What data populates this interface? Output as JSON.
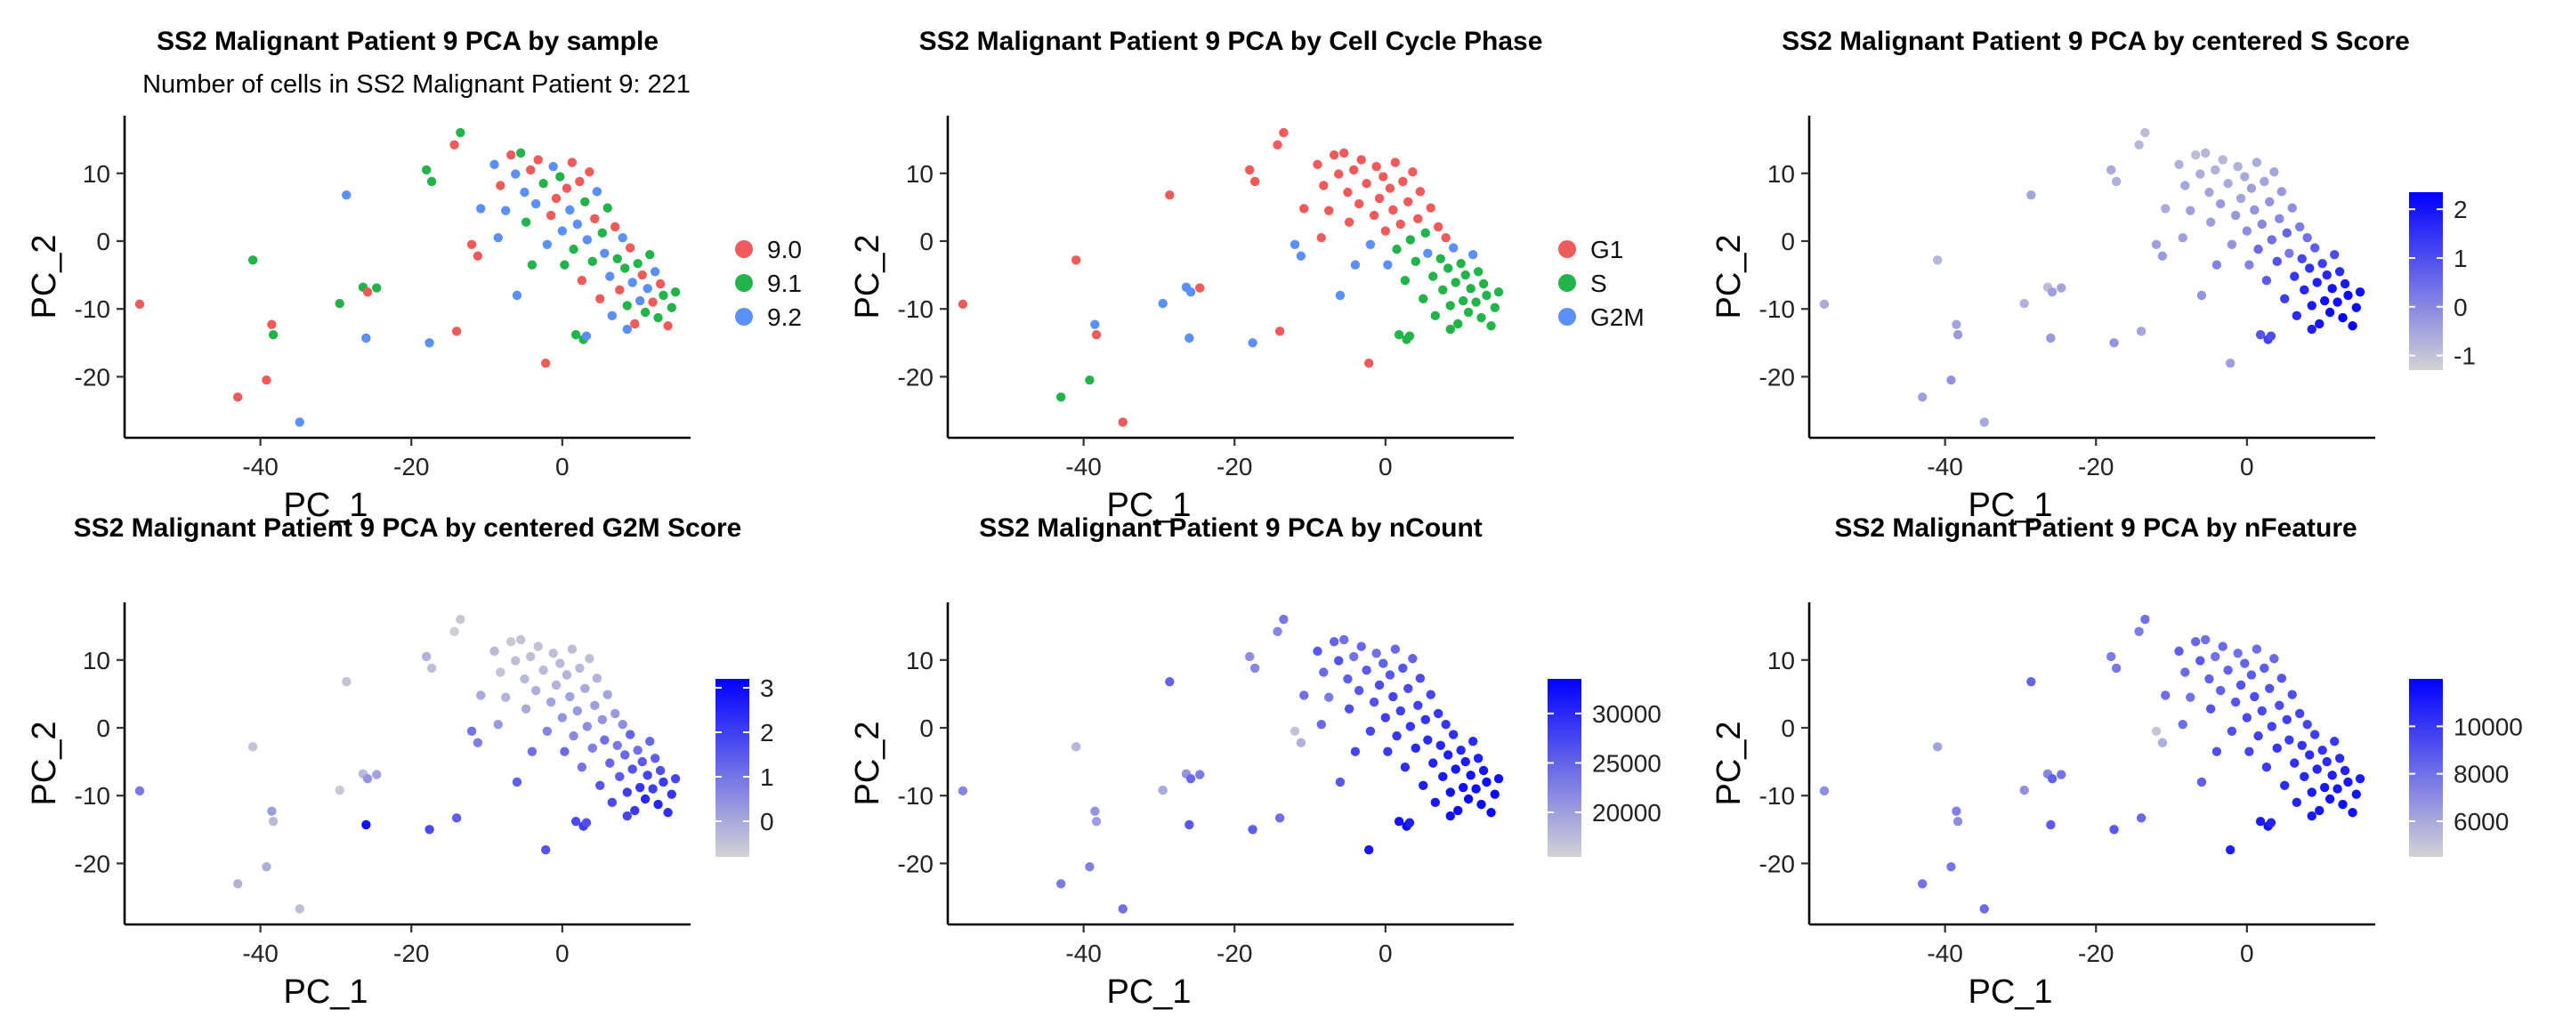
{
  "chart_data": [
    {
      "type": "scatter",
      "title": "SS2 Malignant Patient 9 PCA by sample",
      "subtitle": "Number of cells in SS2 Malignant Patient 9: 221",
      "xlabel": "PC_1",
      "ylabel": "PC_2",
      "xlim": [
        -58,
        17
      ],
      "ylim": [
        -29,
        18.5
      ],
      "x_ticks": [
        -40,
        -20,
        0
      ],
      "y_ticks": [
        10,
        0,
        -10,
        -20
      ],
      "color_mode": "categorical",
      "legend": {
        "position": "right",
        "entries": [
          {
            "label": "9.0",
            "color": "#EF5A5A"
          },
          {
            "label": "9.1",
            "color": "#22B44A"
          },
          {
            "label": "9.2",
            "color": "#5B8FF9"
          }
        ]
      }
    },
    {
      "type": "scatter",
      "title": "SS2 Malignant Patient 9 PCA by Cell Cycle Phase",
      "xlabel": "PC_1",
      "ylabel": "PC_2",
      "xlim": [
        -58,
        17
      ],
      "ylim": [
        -29,
        18.5
      ],
      "x_ticks": [
        -40,
        -20,
        0
      ],
      "y_ticks": [
        10,
        0,
        -10,
        -20
      ],
      "color_mode": "categorical",
      "legend": {
        "position": "right",
        "entries": [
          {
            "label": "G1",
            "color": "#EF5A5A"
          },
          {
            "label": "S",
            "color": "#22B44A"
          },
          {
            "label": "G2M",
            "color": "#5B8FF9"
          }
        ]
      }
    },
    {
      "type": "scatter",
      "title": "SS2 Malignant Patient 9 PCA by centered S Score",
      "xlabel": "PC_1",
      "ylabel": "PC_2",
      "xlim": [
        -58,
        17
      ],
      "ylim": [
        -29,
        18.5
      ],
      "x_ticks": [
        -40,
        -20,
        0
      ],
      "y_ticks": [
        10,
        0,
        -10,
        -20
      ],
      "color_mode": "continuous",
      "colorbar": {
        "low": "#D3D3D3",
        "high": "#0000FF",
        "min": -1.3,
        "max": 2.35,
        "ticks": [
          2,
          1,
          0,
          -1
        ]
      }
    },
    {
      "type": "scatter",
      "title": "SS2 Malignant Patient 9 PCA by centered G2M Score",
      "xlabel": "PC_1",
      "ylabel": "PC_2",
      "xlim": [
        -58,
        17
      ],
      "ylim": [
        -29,
        18.5
      ],
      "x_ticks": [
        -40,
        -20,
        0
      ],
      "y_ticks": [
        10,
        0,
        -10,
        -20
      ],
      "color_mode": "continuous",
      "colorbar": {
        "low": "#D3D3D3",
        "high": "#0000FF",
        "min": -0.8,
        "max": 3.2,
        "ticks": [
          3,
          2,
          1,
          0
        ]
      }
    },
    {
      "type": "scatter",
      "title": "SS2 Malignant Patient 9 PCA by nCount",
      "xlabel": "PC_1",
      "ylabel": "PC_2",
      "xlim": [
        -58,
        17
      ],
      "ylim": [
        -29,
        18.5
      ],
      "x_ticks": [
        -40,
        -20,
        0
      ],
      "y_ticks": [
        10,
        0,
        -10,
        -20
      ],
      "color_mode": "continuous",
      "colorbar": {
        "low": "#D3D3D3",
        "high": "#0000FF",
        "min": 15500,
        "max": 33500,
        "ticks": [
          30000,
          25000,
          20000
        ]
      }
    },
    {
      "type": "scatter",
      "title": "SS2 Malignant Patient 9 PCA by nFeature",
      "xlabel": "PC_1",
      "ylabel": "PC_2",
      "xlim": [
        -58,
        17
      ],
      "ylim": [
        -29,
        18.5
      ],
      "x_ticks": [
        -40,
        -20,
        0
      ],
      "y_ticks": [
        10,
        0,
        -10,
        -20
      ],
      "color_mode": "continuous",
      "colorbar": {
        "low": "#D3D3D3",
        "high": "#0000FF",
        "min": 4500,
        "max": 12000,
        "ticks": [
          10000,
          8000,
          6000
        ]
      }
    }
  ],
  "points": [
    {
      "x": -56,
      "y": -9.3,
      "sample": 0,
      "phase": 0,
      "s": -0.6,
      "g2m": 0.9,
      "nc": 22000,
      "nf": 7000
    },
    {
      "x": -43,
      "y": -23,
      "sample": 0,
      "phase": 1,
      "s": -0.4,
      "g2m": -0.2,
      "nc": 23000,
      "nf": 8000
    },
    {
      "x": -41,
      "y": -2.8,
      "sample": 1,
      "phase": 0,
      "s": -0.8,
      "g2m": -0.5,
      "nc": 18000,
      "nf": 6200
    },
    {
      "x": -38.5,
      "y": -12.3,
      "sample": 0,
      "phase": 2,
      "s": -0.5,
      "g2m": 0.2,
      "nc": 21000,
      "nf": 7500
    },
    {
      "x": -38.3,
      "y": -13.8,
      "sample": 1,
      "phase": 0,
      "s": -0.3,
      "g2m": -0.3,
      "nc": 20000,
      "nf": 7000
    },
    {
      "x": -39.2,
      "y": -20.5,
      "sample": 0,
      "phase": 1,
      "s": -0.2,
      "g2m": -0.1,
      "nc": 22500,
      "nf": 7800
    },
    {
      "x": -34.8,
      "y": -26.7,
      "sample": 2,
      "phase": 0,
      "s": -0.6,
      "g2m": -0.4,
      "nc": 24000,
      "nf": 8200
    },
    {
      "x": -29.5,
      "y": -9.2,
      "sample": 1,
      "phase": 2,
      "s": -0.7,
      "g2m": -0.6,
      "nc": 19000,
      "nf": 6800
    },
    {
      "x": -28.6,
      "y": 6.8,
      "sample": 2,
      "phase": 0,
      "s": -0.5,
      "g2m": -0.5,
      "nc": 25000,
      "nf": 8400
    },
    {
      "x": -26.4,
      "y": -6.8,
      "sample": 1,
      "phase": 2,
      "s": -0.9,
      "g2m": -0.3,
      "nc": 21000,
      "nf": 7200
    },
    {
      "x": -25.8,
      "y": -7.5,
      "sample": 0,
      "phase": 2,
      "s": -0.4,
      "g2m": 0.4,
      "nc": 24500,
      "nf": 8500
    },
    {
      "x": -24.6,
      "y": -6.9,
      "sample": 1,
      "phase": 0,
      "s": -0.5,
      "g2m": 0.1,
      "nc": 23000,
      "nf": 7900
    },
    {
      "x": -26,
      "y": -14.3,
      "sample": 2,
      "phase": 2,
      "s": -0.3,
      "g2m": 2.9,
      "nc": 26000,
      "nf": 8800
    },
    {
      "x": -17.6,
      "y": -15,
      "sample": 2,
      "phase": 2,
      "s": -0.2,
      "g2m": 1.8,
      "nc": 25500,
      "nf": 8900
    },
    {
      "x": -14,
      "y": -13.3,
      "sample": 0,
      "phase": 0,
      "s": -0.5,
      "g2m": 1.4,
      "nc": 24000,
      "nf": 8300
    },
    {
      "x": -18,
      "y": 10.5,
      "sample": 1,
      "phase": 0,
      "s": -0.6,
      "g2m": -0.2,
      "nc": 21500,
      "nf": 7600
    },
    {
      "x": -17.3,
      "y": 8.8,
      "sample": 1,
      "phase": 0,
      "s": -0.7,
      "g2m": -0.4,
      "nc": 22000,
      "nf": 7700
    },
    {
      "x": -13.5,
      "y": 16,
      "sample": 1,
      "phase": 0,
      "s": -0.9,
      "g2m": -0.6,
      "nc": 23500,
      "nf": 8000
    },
    {
      "x": -14.3,
      "y": 14.2,
      "sample": 0,
      "phase": 0,
      "s": -0.8,
      "g2m": -0.7,
      "nc": 22000,
      "nf": 7600
    },
    {
      "x": -12,
      "y": -0.5,
      "sample": 0,
      "phase": 2,
      "s": -0.4,
      "g2m": 1.0,
      "nc": 17000,
      "nf": 5000
    },
    {
      "x": -11.2,
      "y": -2.2,
      "sample": 0,
      "phase": 2,
      "s": -0.3,
      "g2m": 0.8,
      "nc": 18500,
      "nf": 5800
    },
    {
      "x": -10.8,
      "y": 4.8,
      "sample": 2,
      "phase": 0,
      "s": -0.6,
      "g2m": 0.0,
      "nc": 24000,
      "nf": 8100
    },
    {
      "x": -9,
      "y": 11.3,
      "sample": 2,
      "phase": 0,
      "s": -0.7,
      "g2m": -0.3,
      "nc": 26000,
      "nf": 8700
    },
    {
      "x": -8.2,
      "y": 8.2,
      "sample": 0,
      "phase": 0,
      "s": -0.5,
      "g2m": -0.5,
      "nc": 24500,
      "nf": 8200
    },
    {
      "x": -7.5,
      "y": 4.5,
      "sample": 2,
      "phase": 0,
      "s": -0.4,
      "g2m": -0.2,
      "nc": 23000,
      "nf": 7900
    },
    {
      "x": -6.8,
      "y": 12.7,
      "sample": 0,
      "phase": 0,
      "s": -0.9,
      "g2m": -0.6,
      "nc": 25000,
      "nf": 8300
    },
    {
      "x": -6.2,
      "y": 9.9,
      "sample": 2,
      "phase": 0,
      "s": -0.6,
      "g2m": -0.4,
      "nc": 26500,
      "nf": 8800
    },
    {
      "x": -5.5,
      "y": 13,
      "sample": 1,
      "phase": 0,
      "s": -0.8,
      "g2m": -0.5,
      "nc": 24000,
      "nf": 8000
    },
    {
      "x": -5,
      "y": 7.2,
      "sample": 2,
      "phase": 0,
      "s": -0.5,
      "g2m": -0.3,
      "nc": 25500,
      "nf": 8500
    },
    {
      "x": -4.8,
      "y": 2.8,
      "sample": 1,
      "phase": 0,
      "s": -0.4,
      "g2m": 0.0,
      "nc": 27000,
      "nf": 9000
    },
    {
      "x": -4.2,
      "y": 10.5,
      "sample": 0,
      "phase": 0,
      "s": -0.7,
      "g2m": -0.4,
      "nc": 23500,
      "nf": 7900
    },
    {
      "x": -3.5,
      "y": 5.5,
      "sample": 2,
      "phase": 0,
      "s": -0.3,
      "g2m": -0.1,
      "nc": 26000,
      "nf": 8600
    },
    {
      "x": -3.2,
      "y": 12,
      "sample": 0,
      "phase": 0,
      "s": -0.8,
      "g2m": -0.5,
      "nc": 24800,
      "nf": 8200
    },
    {
      "x": -2.5,
      "y": 8.5,
      "sample": 1,
      "phase": 0,
      "s": -0.6,
      "g2m": -0.3,
      "nc": 25800,
      "nf": 8500
    },
    {
      "x": -2,
      "y": -0.5,
      "sample": 2,
      "phase": 2,
      "s": -0.2,
      "g2m": 0.7,
      "nc": 27500,
      "nf": 9200
    },
    {
      "x": -1.5,
      "y": 3.8,
      "sample": 0,
      "phase": 0,
      "s": -0.3,
      "g2m": 0.1,
      "nc": 26500,
      "nf": 8900
    },
    {
      "x": -1.2,
      "y": 11,
      "sample": 2,
      "phase": 0,
      "s": -0.7,
      "g2m": -0.4,
      "nc": 24000,
      "nf": 8000
    },
    {
      "x": -0.8,
      "y": 6.3,
      "sample": 0,
      "phase": 0,
      "s": -0.5,
      "g2m": -0.2,
      "nc": 27000,
      "nf": 9000
    },
    {
      "x": -0.3,
      "y": 9.5,
      "sample": 1,
      "phase": 0,
      "s": -0.6,
      "g2m": -0.3,
      "nc": 25200,
      "nf": 8400
    },
    {
      "x": 0,
      "y": 1.5,
      "sample": 2,
      "phase": 0,
      "s": -0.1,
      "g2m": 0.4,
      "nc": 28000,
      "nf": 9400
    },
    {
      "x": 0.3,
      "y": -3.5,
      "sample": 1,
      "phase": 2,
      "s": 0.1,
      "g2m": 1.2,
      "nc": 28500,
      "nf": 9500
    },
    {
      "x": 0.6,
      "y": 7.8,
      "sample": 0,
      "phase": 0,
      "s": -0.4,
      "g2m": -0.2,
      "nc": 26000,
      "nf": 8700
    },
    {
      "x": 1,
      "y": 4.6,
      "sample": 2,
      "phase": 0,
      "s": -0.2,
      "g2m": 0.1,
      "nc": 27800,
      "nf": 9300
    },
    {
      "x": 1.3,
      "y": 11.6,
      "sample": 0,
      "phase": 0,
      "s": -0.6,
      "g2m": -0.4,
      "nc": 24500,
      "nf": 8100
    },
    {
      "x": 1.5,
      "y": -1.2,
      "sample": 1,
      "phase": 1,
      "s": 0.5,
      "g2m": 0.6,
      "nc": 29000,
      "nf": 9700
    },
    {
      "x": 2,
      "y": 2.5,
      "sample": 2,
      "phase": 0,
      "s": 0.0,
      "g2m": 0.3,
      "nc": 28200,
      "nf": 9400
    },
    {
      "x": 2.3,
      "y": 8.8,
      "sample": 0,
      "phase": 0,
      "s": -0.5,
      "g2m": -0.3,
      "nc": 26200,
      "nf": 8700
    },
    {
      "x": 2.6,
      "y": -5.8,
      "sample": 0,
      "phase": 1,
      "s": 0.8,
      "g2m": 1.0,
      "nc": 29500,
      "nf": 9900
    },
    {
      "x": 3,
      "y": 5.8,
      "sample": 1,
      "phase": 0,
      "s": -0.2,
      "g2m": 0.0,
      "nc": 27200,
      "nf": 9100
    },
    {
      "x": 3.3,
      "y": 0.2,
      "sample": 2,
      "phase": 1,
      "s": 0.4,
      "g2m": 0.5,
      "nc": 28800,
      "nf": 9600
    },
    {
      "x": 3.6,
      "y": 10.2,
      "sample": 0,
      "phase": 0,
      "s": -0.5,
      "g2m": -0.4,
      "nc": 25000,
      "nf": 8300
    },
    {
      "x": 4,
      "y": -3,
      "sample": 1,
      "phase": 1,
      "s": 0.9,
      "g2m": 0.8,
      "nc": 30000,
      "nf": 10100
    },
    {
      "x": 4.3,
      "y": 3.3,
      "sample": 0,
      "phase": 0,
      "s": 0.0,
      "g2m": 0.2,
      "nc": 28000,
      "nf": 9300
    },
    {
      "x": 4.6,
      "y": 7.3,
      "sample": 2,
      "phase": 0,
      "s": -0.3,
      "g2m": -0.2,
      "nc": 26800,
      "nf": 8900
    },
    {
      "x": 5,
      "y": -8.5,
      "sample": 0,
      "phase": 1,
      "s": 1.3,
      "g2m": 1.6,
      "nc": 31000,
      "nf": 10500
    },
    {
      "x": 5.3,
      "y": 1.2,
      "sample": 1,
      "phase": 1,
      "s": 0.6,
      "g2m": 0.4,
      "nc": 29200,
      "nf": 9700
    },
    {
      "x": 5.6,
      "y": -1.8,
      "sample": 2,
      "phase": 2,
      "s": 0.3,
      "g2m": 1.1,
      "nc": 29800,
      "nf": 9900
    },
    {
      "x": 6,
      "y": 4.9,
      "sample": 1,
      "phase": 0,
      "s": -0.1,
      "g2m": 0.1,
      "nc": 27600,
      "nf": 9200
    },
    {
      "x": 6.3,
      "y": -5.2,
      "sample": 2,
      "phase": 1,
      "s": 1.4,
      "g2m": 1.3,
      "nc": 30500,
      "nf": 10300
    },
    {
      "x": 6.6,
      "y": -11,
      "sample": 2,
      "phase": 1,
      "s": 1.6,
      "g2m": 1.8,
      "nc": 31500,
      "nf": 10700
    },
    {
      "x": 7,
      "y": 2.1,
      "sample": 0,
      "phase": 0,
      "s": 0.2,
      "g2m": 0.3,
      "nc": 28600,
      "nf": 9500
    },
    {
      "x": 7.3,
      "y": -2.6,
      "sample": 1,
      "phase": 1,
      "s": 1.1,
      "g2m": 0.9,
      "nc": 30200,
      "nf": 10200
    },
    {
      "x": 7.6,
      "y": -7.2,
      "sample": 0,
      "phase": 1,
      "s": 1.7,
      "g2m": 1.5,
      "nc": 31200,
      "nf": 10600
    },
    {
      "x": 8,
      "y": 0.5,
      "sample": 2,
      "phase": 0,
      "s": 0.4,
      "g2m": 0.5,
      "nc": 29000,
      "nf": 9600
    },
    {
      "x": 8.3,
      "y": -4,
      "sample": 1,
      "phase": 1,
      "s": 1.5,
      "g2m": 1.2,
      "nc": 30800,
      "nf": 10400
    },
    {
      "x": 8.6,
      "y": -9.5,
      "sample": 1,
      "phase": 1,
      "s": 1.9,
      "g2m": 2.0,
      "nc": 32000,
      "nf": 11000
    },
    {
      "x": 9,
      "y": -1,
      "sample": 0,
      "phase": 2,
      "s": 0.7,
      "g2m": 1.3,
      "nc": 29600,
      "nf": 9800
    },
    {
      "x": 9.3,
      "y": -6.1,
      "sample": 2,
      "phase": 1,
      "s": 1.8,
      "g2m": 1.6,
      "nc": 31400,
      "nf": 10700
    },
    {
      "x": 9.6,
      "y": -12.2,
      "sample": 0,
      "phase": 1,
      "s": 2.0,
      "g2m": 2.1,
      "nc": 32500,
      "nf": 11200
    },
    {
      "x": 10,
      "y": -3.3,
      "sample": 1,
      "phase": 1,
      "s": 1.3,
      "g2m": 1.1,
      "nc": 30300,
      "nf": 10200
    },
    {
      "x": 10.3,
      "y": -8.8,
      "sample": 2,
      "phase": 1,
      "s": 2.1,
      "g2m": 2.2,
      "nc": 32200,
      "nf": 11100
    },
    {
      "x": 10.6,
      "y": -5,
      "sample": 0,
      "phase": 1,
      "s": 1.7,
      "g2m": 1.5,
      "nc": 31100,
      "nf": 10500
    },
    {
      "x": 11,
      "y": -10.5,
      "sample": 1,
      "phase": 1,
      "s": 2.2,
      "g2m": 2.4,
      "nc": 32800,
      "nf": 11400
    },
    {
      "x": 11.3,
      "y": -7,
      "sample": 2,
      "phase": 1,
      "s": 2.0,
      "g2m": 1.9,
      "nc": 31800,
      "nf": 10900
    },
    {
      "x": 11.6,
      "y": -2,
      "sample": 1,
      "phase": 2,
      "s": 1.0,
      "g2m": 1.2,
      "nc": 29900,
      "nf": 10000
    },
    {
      "x": 12,
      "y": -9,
      "sample": 0,
      "phase": 1,
      "s": 2.1,
      "g2m": 2.0,
      "nc": 32300,
      "nf": 11100
    },
    {
      "x": 12.3,
      "y": -4.5,
      "sample": 2,
      "phase": 1,
      "s": 1.6,
      "g2m": 1.4,
      "nc": 30900,
      "nf": 10500
    },
    {
      "x": 12.7,
      "y": -11.3,
      "sample": 1,
      "phase": 1,
      "s": 2.3,
      "g2m": 2.5,
      "nc": 33000,
      "nf": 11500
    },
    {
      "x": 13,
      "y": -6.3,
      "sample": 0,
      "phase": 1,
      "s": 1.9,
      "g2m": 1.7,
      "nc": 31600,
      "nf": 10800
    },
    {
      "x": 13.4,
      "y": -8,
      "sample": 1,
      "phase": 1,
      "s": 2.2,
      "g2m": 2.1,
      "nc": 32400,
      "nf": 11200
    },
    {
      "x": 14,
      "y": -12.5,
      "sample": 0,
      "phase": 1,
      "s": 2.3,
      "g2m": 2.3,
      "nc": 32900,
      "nf": 11400
    },
    {
      "x": 14.5,
      "y": -9.8,
      "sample": 1,
      "phase": 1,
      "s": 2.2,
      "g2m": 2.2,
      "nc": 32600,
      "nf": 11300
    },
    {
      "x": 15,
      "y": -7.5,
      "sample": 1,
      "phase": 1,
      "s": 2.1,
      "g2m": 1.9,
      "nc": 32100,
      "nf": 11000
    },
    {
      "x": -2.2,
      "y": -18,
      "sample": 0,
      "phase": 0,
      "s": -0.4,
      "g2m": 1.6,
      "nc": 31500,
      "nf": 10900
    },
    {
      "x": 1.8,
      "y": -13.8,
      "sample": 1,
      "phase": 1,
      "s": 0.9,
      "g2m": 1.8,
      "nc": 31800,
      "nf": 11000
    },
    {
      "x": 2.8,
      "y": -14.5,
      "sample": 1,
      "phase": 1,
      "s": 1.2,
      "g2m": 2.0,
      "nc": 32500,
      "nf": 11300
    },
    {
      "x": 3.2,
      "y": -14,
      "sample": 2,
      "phase": 1,
      "s": 1.0,
      "g2m": 1.7,
      "nc": 31000,
      "nf": 10700
    },
    {
      "x": 8.6,
      "y": -13,
      "sample": 2,
      "phase": 1,
      "s": 1.8,
      "g2m": 1.9,
      "nc": 32000,
      "nf": 11100
    },
    {
      "x": -6,
      "y": -8,
      "sample": 2,
      "phase": 2,
      "s": -0.2,
      "g2m": 1.4,
      "nc": 26000,
      "nf": 8700
    },
    {
      "x": -4,
      "y": -3.5,
      "sample": 1,
      "phase": 2,
      "s": 0.1,
      "g2m": 1.1,
      "nc": 27500,
      "nf": 9200
    },
    {
      "x": -8.5,
      "y": 0.5,
      "sample": 2,
      "phase": 0,
      "s": -0.4,
      "g2m": 0.3,
      "nc": 24500,
      "nf": 8100
    }
  ]
}
